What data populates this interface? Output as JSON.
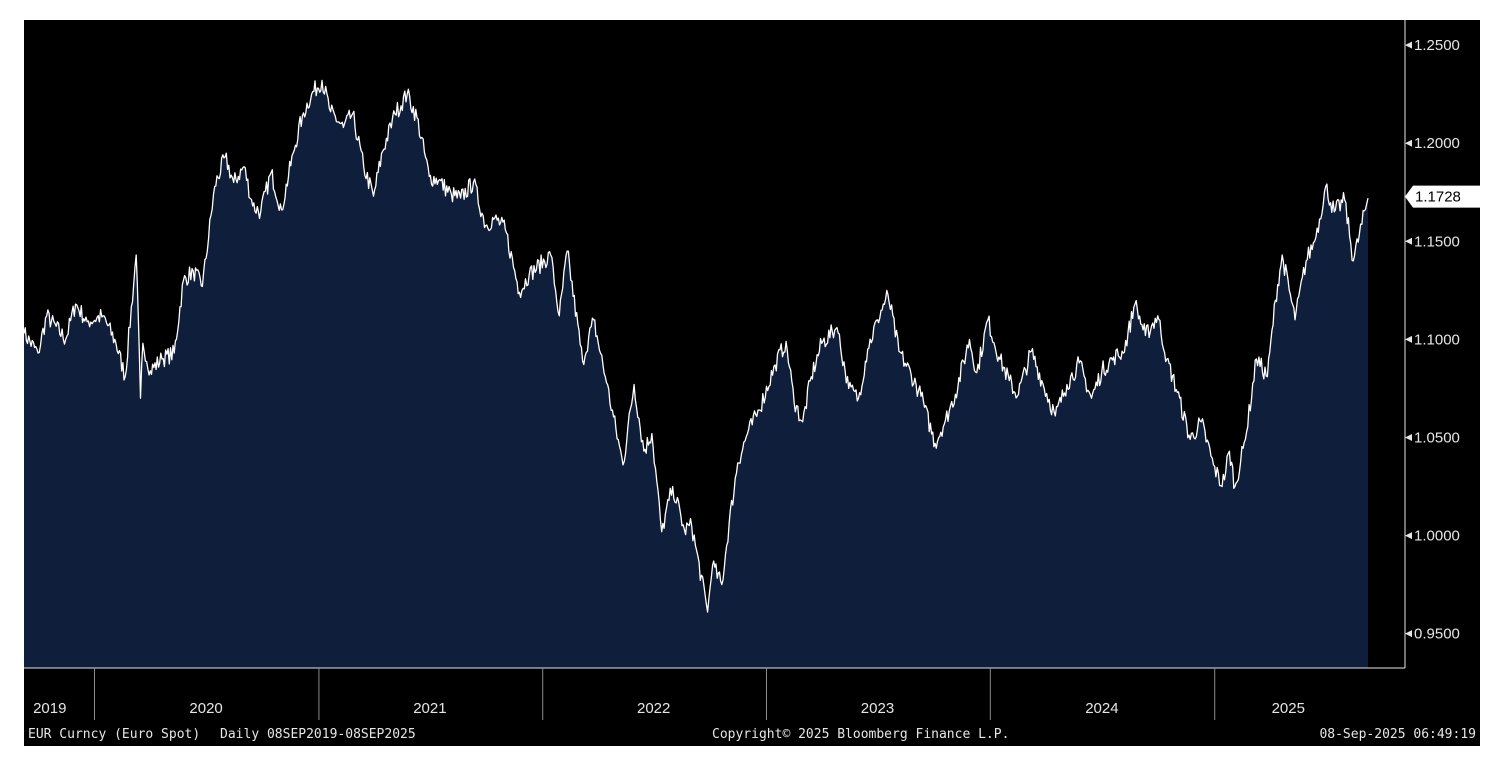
{
  "chart_data": {
    "type": "area",
    "ticker": "EUR Curncy (Euro Spot)",
    "period": "Daily 08SEP2019-08SEP2025",
    "copyright": "Copyright© 2025 Bloomberg Finance L.P.",
    "timestamp": "08-Sep-2025 06:49:19",
    "last_value_label": "1.1728",
    "last_value": 1.1728,
    "ylim": [
      0.9325,
      1.2628
    ],
    "y_ticks": [
      {
        "value": 1.25,
        "label": "1.2500"
      },
      {
        "value": 1.2,
        "label": "1.2000"
      },
      {
        "value": 1.15,
        "label": "1.1500"
      },
      {
        "value": 1.1,
        "label": "1.1000"
      },
      {
        "value": 1.05,
        "label": "1.0500"
      },
      {
        "value": 1.0,
        "label": "1.0000"
      },
      {
        "value": 0.95,
        "label": "0.9500"
      }
    ],
    "x_range": [
      "2019-09-08",
      "2025-09-08"
    ],
    "years": [
      {
        "label": "2019",
        "mid": "2019-10-20"
      },
      {
        "label": "2020",
        "mid": "2020-07-01"
      },
      {
        "label": "2021",
        "mid": "2021-07-01"
      },
      {
        "label": "2022",
        "mid": "2022-07-01"
      },
      {
        "label": "2023",
        "mid": "2023-07-01"
      },
      {
        "label": "2024",
        "mid": "2024-07-01"
      },
      {
        "label": "2025",
        "mid": "2025-05-01"
      }
    ],
    "year_boundaries": [
      "2020-01-01",
      "2021-01-01",
      "2022-01-01",
      "2023-01-01",
      "2024-01-01",
      "2025-01-01"
    ],
    "colors": {
      "line": "#ffffff",
      "fill": "#0f1e3a",
      "background": "#000000",
      "tick": "#e6e6e6"
    },
    "series": [
      {
        "x": [
          "2019-09-08",
          "2019-10-01",
          "2019-10-15",
          "2019-11-15",
          "2019-12-01",
          "2019-12-20",
          "2020-01-15",
          "2020-02-05",
          "2020-02-20",
          "2020-03-09",
          "2020-03-16",
          "2020-03-20",
          "2020-04-01",
          "2020-04-20",
          "2020-05-10",
          "2020-05-25",
          "2020-06-10",
          "2020-06-25",
          "2020-07-15",
          "2020-08-01",
          "2020-08-15",
          "2020-09-01",
          "2020-09-15",
          "2020-09-28",
          "2020-10-15",
          "2020-11-01",
          "2020-11-20",
          "2020-12-05",
          "2020-12-20",
          "2021-01-06",
          "2021-01-20",
          "2021-02-10",
          "2021-02-25",
          "2021-03-15",
          "2021-03-31",
          "2021-04-15",
          "2021-05-05",
          "2021-05-25",
          "2021-06-10",
          "2021-06-30",
          "2021-07-15",
          "2021-08-05",
          "2021-08-20",
          "2021-09-10",
          "2021-09-30",
          "2021-10-15",
          "2021-11-01",
          "2021-11-24",
          "2021-12-10",
          "2022-01-14",
          "2022-01-28",
          "2022-02-10",
          "2022-03-07",
          "2022-03-25",
          "2022-04-15",
          "2022-05-12",
          "2022-05-30",
          "2022-06-15",
          "2022-06-28",
          "2022-07-14",
          "2022-08-01",
          "2022-08-20",
          "2022-09-01",
          "2022-09-27",
          "2022-10-05",
          "2022-10-20",
          "2022-11-01",
          "2022-11-15",
          "2022-12-01",
          "2022-12-20",
          "2023-01-15",
          "2023-02-02",
          "2023-02-15",
          "2023-03-01",
          "2023-03-15",
          "2023-04-01",
          "2023-04-26",
          "2023-05-15",
          "2023-05-31",
          "2023-06-15",
          "2023-07-01",
          "2023-07-18",
          "2023-08-05",
          "2023-08-25",
          "2023-09-10",
          "2023-10-03",
          "2023-10-20",
          "2023-11-05",
          "2023-11-28",
          "2023-12-10",
          "2023-12-28",
          "2024-01-15",
          "2024-02-01",
          "2024-02-14",
          "2024-03-08",
          "2024-03-25",
          "2024-04-16",
          "2024-05-05",
          "2024-05-25",
          "2024-06-14",
          "2024-07-01",
          "2024-07-20",
          "2024-08-05",
          "2024-08-24",
          "2024-09-10",
          "2024-09-30",
          "2024-10-15",
          "2024-11-01",
          "2024-11-22",
          "2024-12-10",
          "2024-12-30",
          "2025-01-13",
          "2025-01-25",
          "2025-02-03",
          "2025-02-20",
          "2025-03-10",
          "2025-03-28",
          "2025-04-10",
          "2025-04-21",
          "2025-05-12",
          "2025-05-30",
          "2025-06-15",
          "2025-07-01",
          "2025-07-15",
          "2025-08-01",
          "2025-08-15",
          "2025-09-08"
        ],
        "y": [
          1.103,
          1.093,
          1.112,
          1.1,
          1.118,
          1.109,
          1.112,
          1.098,
          1.081,
          1.143,
          1.07,
          1.098,
          1.084,
          1.09,
          1.093,
          1.13,
          1.135,
          1.127,
          1.178,
          1.193,
          1.18,
          1.188,
          1.168,
          1.165,
          1.185,
          1.166,
          1.195,
          1.214,
          1.225,
          1.232,
          1.216,
          1.208,
          1.215,
          1.188,
          1.173,
          1.196,
          1.215,
          1.225,
          1.213,
          1.183,
          1.181,
          1.174,
          1.172,
          1.18,
          1.158,
          1.162,
          1.156,
          1.124,
          1.133,
          1.143,
          1.112,
          1.145,
          1.089,
          1.11,
          1.078,
          1.036,
          1.077,
          1.043,
          1.052,
          1.002,
          1.025,
          1.003,
          1.005,
          0.961,
          0.985,
          0.975,
          1.006,
          1.037,
          1.052,
          1.064,
          1.087,
          1.099,
          1.068,
          1.058,
          1.081,
          1.098,
          1.106,
          1.075,
          1.07,
          1.095,
          1.11,
          1.123,
          1.094,
          1.082,
          1.071,
          1.047,
          1.059,
          1.072,
          1.1,
          1.083,
          1.11,
          1.091,
          1.079,
          1.071,
          1.094,
          1.079,
          1.061,
          1.077,
          1.088,
          1.07,
          1.084,
          1.091,
          1.093,
          1.118,
          1.102,
          1.112,
          1.09,
          1.073,
          1.049,
          1.058,
          1.036,
          1.025,
          1.043,
          1.025,
          1.049,
          1.09,
          1.081,
          1.12,
          1.143,
          1.11,
          1.14,
          1.152,
          1.178,
          1.165,
          1.171,
          1.14,
          1.172
        ]
      }
    ]
  }
}
